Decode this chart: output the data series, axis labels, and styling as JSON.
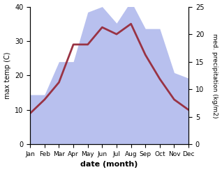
{
  "months": [
    "Jan",
    "Feb",
    "Mar",
    "Apr",
    "May",
    "Jun",
    "Jul",
    "Aug",
    "Sep",
    "Oct",
    "Nov",
    "Dec"
  ],
  "temp_max": [
    9,
    13,
    18,
    29,
    29,
    34,
    32,
    35,
    26,
    19,
    13,
    10
  ],
  "precipitation": [
    9,
    9,
    15,
    15,
    24,
    25,
    22,
    26,
    21,
    21,
    13,
    12
  ],
  "temp_color": "#993344",
  "precip_color_fill": "#b8c0ee",
  "title": "",
  "xlabel": "date (month)",
  "ylabel_left": "max temp (C)",
  "ylabel_right": "med. precipitation (kg/m2)",
  "ylim_left": [
    0,
    40
  ],
  "ylim_right": [
    0,
    25
  ],
  "yticks_left": [
    0,
    10,
    20,
    30,
    40
  ],
  "yticks_right": [
    0,
    5,
    10,
    15,
    20,
    25
  ],
  "bg_color": "#ffffff",
  "line_width": 2.0
}
